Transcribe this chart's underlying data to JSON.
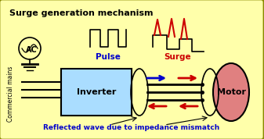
{
  "title": "Surge generation mechanism",
  "bg_color": "#FFFFAA",
  "border_color": "#888800",
  "inverter_label": "Inverter",
  "motor_label": "Motor",
  "motor_color": "#E08080",
  "inverter_color": "#AADDFF",
  "pulse_label": "Pulse",
  "surge_label": "Surge",
  "bottom_label": "Reflected wave due to impedance mismatch",
  "ac_label": "AC",
  "side_label": "Commercial mains",
  "blue_arrow_color": "#0000CC",
  "red_arrow_color": "#CC0000",
  "figsize": [
    3.37,
    1.78
  ],
  "dpi": 100
}
